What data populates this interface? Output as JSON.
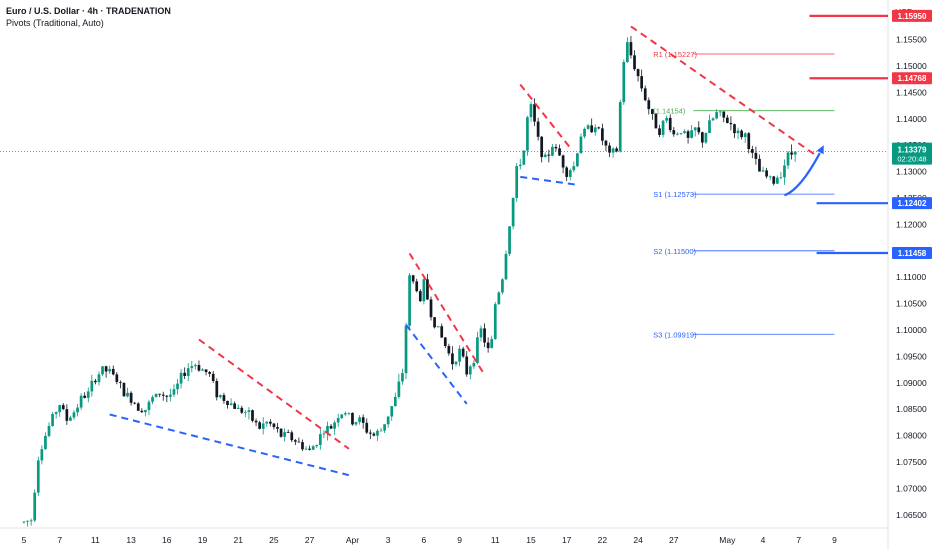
{
  "header": {
    "title": "Euro / U.S. Dollar · 4h · TRADENATION",
    "indicator": "Pivots (Traditional, Auto)"
  },
  "chart_data": {
    "type": "candlestick",
    "symbol": "Euro / U.S. Dollar",
    "interval": "4h",
    "currency": "USD",
    "y_ticks": [
      1.065,
      1.07,
      1.075,
      1.08,
      1.085,
      1.09,
      1.095,
      1.1,
      1.105,
      1.11,
      1.115,
      1.12,
      1.125,
      1.13,
      1.135,
      1.14,
      1.145,
      1.15,
      1.155
    ],
    "y_tick_labels": [
      "1.06500",
      "1.07000",
      "1.07500",
      "1.08000",
      "1.08500",
      "1.09000",
      "1.09500",
      "1.10000",
      "1.10500",
      "1.11000",
      "1.11500",
      "1.12000",
      "1.12500",
      "1.13000",
      "1.13500",
      "1.14000",
      "1.14500",
      "1.15000",
      "1.15500"
    ],
    "ylim": [
      1.0625,
      1.1625
    ],
    "x_ticks": [
      {
        "label": "5",
        "idx": 0
      },
      {
        "label": "7",
        "idx": 10
      },
      {
        "label": "11",
        "idx": 20
      },
      {
        "label": "13",
        "idx": 30
      },
      {
        "label": "16",
        "idx": 40
      },
      {
        "label": "19",
        "idx": 50
      },
      {
        "label": "21",
        "idx": 60
      },
      {
        "label": "25",
        "idx": 70
      },
      {
        "label": "27",
        "idx": 80
      },
      {
        "label": "Apr",
        "idx": 92
      },
      {
        "label": "3",
        "idx": 102
      },
      {
        "label": "6",
        "idx": 112
      },
      {
        "label": "9",
        "idx": 122
      },
      {
        "label": "11",
        "idx": 132
      },
      {
        "label": "15",
        "idx": 142
      },
      {
        "label": "17",
        "idx": 152
      },
      {
        "label": "22",
        "idx": 162
      },
      {
        "label": "24",
        "idx": 172
      },
      {
        "label": "27",
        "idx": 182
      },
      {
        "label": "May",
        "idx": 197
      },
      {
        "label": "4",
        "idx": 207
      },
      {
        "label": "7",
        "idx": 217
      },
      {
        "label": "9",
        "idx": 227
      }
    ],
    "anchors": [
      [
        0,
        1.0636
      ],
      [
        2,
        1.0641
      ],
      [
        4,
        1.076
      ],
      [
        6,
        1.08
      ],
      [
        8,
        1.0835
      ],
      [
        10,
        1.086
      ],
      [
        12,
        1.083
      ],
      [
        14,
        1.0845
      ],
      [
        16,
        1.087
      ],
      [
        18,
        1.088
      ],
      [
        20,
        1.091
      ],
      [
        22,
        1.0925
      ],
      [
        24,
        1.092
      ],
      [
        26,
        1.0905
      ],
      [
        28,
        1.088
      ],
      [
        30,
        1.087
      ],
      [
        32,
        1.0855
      ],
      [
        34,
        1.085
      ],
      [
        36,
        1.087
      ],
      [
        38,
        1.088
      ],
      [
        40,
        1.0875
      ],
      [
        42,
        1.088
      ],
      [
        44,
        1.091
      ],
      [
        46,
        1.093
      ],
      [
        48,
        1.0935
      ],
      [
        50,
        1.0925
      ],
      [
        52,
        1.0915
      ],
      [
        54,
        1.088
      ],
      [
        56,
        1.087
      ],
      [
        58,
        1.086
      ],
      [
        60,
        1.085
      ],
      [
        62,
        1.0845
      ],
      [
        64,
        1.083
      ],
      [
        66,
        1.0815
      ],
      [
        68,
        1.0825
      ],
      [
        70,
        1.0815
      ],
      [
        72,
        1.08
      ],
      [
        74,
        1.08
      ],
      [
        76,
        1.079
      ],
      [
        78,
        1.078
      ],
      [
        80,
        1.077
      ],
      [
        82,
        1.079
      ],
      [
        84,
        1.081
      ],
      [
        86,
        1.0815
      ],
      [
        88,
        1.084
      ],
      [
        90,
        1.0845
      ],
      [
        92,
        1.0825
      ],
      [
        94,
        1.083
      ],
      [
        96,
        1.081
      ],
      [
        98,
        1.08
      ],
      [
        100,
        1.081
      ],
      [
        102,
        1.084
      ],
      [
        104,
        1.087
      ],
      [
        106,
        1.092
      ],
      [
        107,
        1.101
      ],
      [
        108,
        1.11
      ],
      [
        110,
        1.108
      ],
      [
        111,
        1.105
      ],
      [
        112,
        1.109
      ],
      [
        114,
        1.103
      ],
      [
        116,
        1.1
      ],
      [
        118,
        1.097
      ],
      [
        120,
        1.094
      ],
      [
        122,
        1.096
      ],
      [
        124,
        1.092
      ],
      [
        126,
        1.095
      ],
      [
        128,
        1.1
      ],
      [
        130,
        1.096
      ],
      [
        131,
        1.098
      ],
      [
        132,
        1.105
      ],
      [
        134,
        1.11
      ],
      [
        136,
        1.12
      ],
      [
        138,
        1.13
      ],
      [
        140,
        1.134
      ],
      [
        141,
        1.14
      ],
      [
        142,
        1.142
      ],
      [
        144,
        1.136
      ],
      [
        146,
        1.132
      ],
      [
        148,
        1.135
      ],
      [
        150,
        1.133
      ],
      [
        152,
        1.13
      ],
      [
        154,
        1.131
      ],
      [
        156,
        1.137
      ],
      [
        158,
        1.138
      ],
      [
        160,
        1.139
      ],
      [
        162,
        1.136
      ],
      [
        164,
        1.133
      ],
      [
        166,
        1.134
      ],
      [
        167,
        1.143
      ],
      [
        168,
        1.151
      ],
      [
        169,
        1.154
      ],
      [
        170,
        1.152
      ],
      [
        172,
        1.148
      ],
      [
        174,
        1.144
      ],
      [
        176,
        1.14
      ],
      [
        178,
        1.138
      ],
      [
        180,
        1.14
      ],
      [
        182,
        1.137
      ],
      [
        184,
        1.138
      ],
      [
        186,
        1.136
      ],
      [
        188,
        1.138
      ],
      [
        190,
        1.136
      ],
      [
        192,
        1.139
      ],
      [
        194,
        1.141
      ],
      [
        196,
        1.14
      ],
      [
        198,
        1.139
      ],
      [
        200,
        1.137
      ],
      [
        202,
        1.137
      ],
      [
        204,
        1.133
      ],
      [
        206,
        1.13
      ],
      [
        208,
        1.129
      ],
      [
        210,
        1.128
      ],
      [
        212,
        1.13
      ],
      [
        214,
        1.133
      ],
      [
        216,
        1.1338
      ]
    ],
    "last_bar_idx": 216,
    "pivots": [
      {
        "label": "R1",
        "value": 1.15227,
        "text": "R1 (1.15227)"
      },
      {
        "label": "P",
        "value": 1.14154,
        "text": "(1.14154)"
      },
      {
        "label": "S1",
        "value": 1.12573,
        "text": "S1 (1.12573)"
      },
      {
        "label": "S2",
        "value": 1.115,
        "text": "S2 (1.11500)"
      },
      {
        "label": "S3",
        "value": 1.09919,
        "text": "S3 (1.09919)"
      }
    ],
    "levels": [
      {
        "value": 1.1595,
        "label": "1.15950",
        "type": "resistance"
      },
      {
        "value": 1.14768,
        "label": "1.14768",
        "type": "resistance"
      },
      {
        "value": 1.12402,
        "label": "1.12402",
        "type": "support"
      },
      {
        "value": 1.11458,
        "label": "1.11458",
        "type": "support"
      }
    ],
    "current_price": {
      "value": 1.13379,
      "label": "1.13379",
      "countdown": "02:20:48"
    },
    "trendlines": [
      {
        "color": "red",
        "points": [
          [
            49,
            1.0982
          ],
          [
            91,
            1.0775
          ]
        ]
      },
      {
        "color": "blue",
        "points": [
          [
            24,
            1.084
          ],
          [
            91,
            1.0725
          ]
        ]
      },
      {
        "color": "red",
        "points": [
          [
            108,
            1.1145
          ],
          [
            129,
            1.0915
          ]
        ]
      },
      {
        "color": "blue",
        "points": [
          [
            107,
            1.101
          ],
          [
            124,
            1.086
          ]
        ]
      },
      {
        "color": "red",
        "points": [
          [
            139,
            1.1465
          ],
          [
            153,
            1.1345
          ]
        ]
      },
      {
        "color": "blue",
        "points": [
          [
            139,
            1.129
          ],
          [
            155,
            1.1275
          ]
        ]
      },
      {
        "color": "red",
        "points": [
          [
            170,
            1.1575
          ],
          [
            222,
            1.133
          ]
        ]
      }
    ],
    "arrow": {
      "from": [
        213,
        1.1255
      ],
      "to": [
        224,
        1.135
      ],
      "color": "blue"
    },
    "colors": {
      "up": "#089981",
      "down": "#131722",
      "resistance": "#f23645",
      "support": "#2962ff",
      "pivot_r": "#f23645",
      "pivot_p": "#4caf50",
      "pivot_s": "#2962ff",
      "current": "#089981"
    }
  }
}
